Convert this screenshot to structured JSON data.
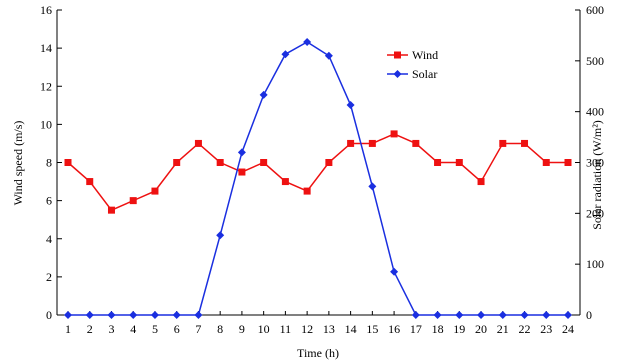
{
  "chart_data": {
    "type": "line",
    "x": [
      1,
      2,
      3,
      4,
      5,
      6,
      7,
      8,
      9,
      10,
      11,
      12,
      13,
      14,
      15,
      16,
      17,
      18,
      19,
      20,
      21,
      22,
      23,
      24
    ],
    "xlabel": "Time (h)",
    "ylabel_left": "Wind speed (m/s)",
    "ylabel_right": "Solar radiation (W/m²)",
    "ylim_left": [
      0,
      16
    ],
    "yticks_left": [
      "0",
      "2",
      "4",
      "6",
      "8",
      "10",
      "12",
      "14",
      "16"
    ],
    "ylim_right": [
      0,
      600
    ],
    "yticks_right": [
      "0",
      "100",
      "200",
      "300",
      "400",
      "500",
      "600"
    ],
    "xticks": [
      "1",
      "2",
      "3",
      "4",
      "5",
      "6",
      "7",
      "8",
      "9",
      "10",
      "11",
      "12",
      "13",
      "14",
      "15",
      "16",
      "17",
      "18",
      "19",
      "20",
      "21",
      "22",
      "23",
      "24"
    ],
    "grid": false,
    "legend_position": "top-right",
    "series": [
      {
        "name": "Wind",
        "axis": "left",
        "color": "#ee1111",
        "marker": "square",
        "values": [
          8,
          7,
          5.5,
          6,
          6.5,
          8,
          9,
          8,
          7.5,
          8,
          7,
          6.5,
          8,
          9,
          9,
          9.5,
          9,
          8,
          8,
          7,
          9,
          9,
          8,
          8
        ]
      },
      {
        "name": "Solar",
        "axis": "right",
        "color": "#1a2fe0",
        "marker": "diamond",
        "values": [
          0,
          0,
          0,
          0,
          0,
          0,
          0,
          157,
          320,
          433,
          513,
          537,
          510,
          413,
          253,
          85,
          0,
          0,
          0,
          0,
          0,
          0,
          0,
          0
        ]
      }
    ]
  }
}
